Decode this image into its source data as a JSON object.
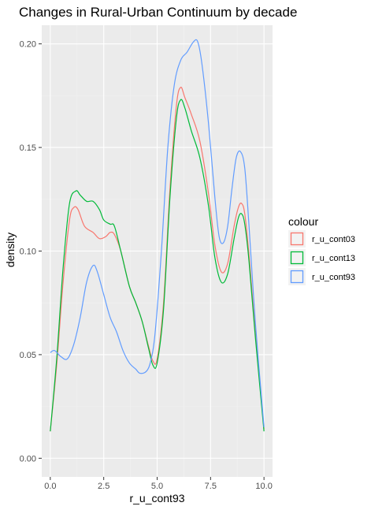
{
  "chart_data": {
    "type": "line",
    "title": "Changes in Rural-Urban Continuum by decade",
    "xlabel": "r_u_cont93",
    "ylabel": "density",
    "xlim": [
      -0.4,
      10.4
    ],
    "ylim": [
      -0.009,
      0.209
    ],
    "x_ticks": [
      0,
      2.5,
      5,
      7.5,
      10
    ],
    "x_tick_labels": [
      "0.0",
      "2.5",
      "5.0",
      "7.5",
      "10.0"
    ],
    "y_ticks": [
      0,
      0.05,
      0.1,
      0.15,
      0.2
    ],
    "y_tick_labels": [
      "0.00",
      "0.05",
      "0.10",
      "0.15",
      "0.20"
    ],
    "grid": true,
    "legend_title": "colour",
    "legend_position": "right",
    "panel_background": "#ebebeb",
    "series": [
      {
        "name": "r_u_cont03",
        "color": "#F8766D",
        "x": [
          0,
          0.3,
          0.6,
          0.9,
          1.1,
          1.3,
          1.6,
          2.0,
          2.3,
          2.6,
          2.8,
          3.0,
          3.3,
          3.7,
          4.0,
          4.3,
          4.6,
          4.8,
          5.0,
          5.3,
          5.6,
          5.9,
          6.1,
          6.3,
          6.6,
          7.0,
          7.4,
          7.7,
          8.0,
          8.3,
          8.6,
          8.8,
          8.95,
          9.1,
          9.3,
          9.6,
          10.0
        ],
        "y": [
          0.013,
          0.045,
          0.085,
          0.115,
          0.121,
          0.12,
          0.112,
          0.109,
          0.106,
          0.107,
          0.109,
          0.108,
          0.1,
          0.083,
          0.075,
          0.066,
          0.054,
          0.047,
          0.048,
          0.075,
          0.13,
          0.17,
          0.179,
          0.174,
          0.166,
          0.153,
          0.128,
          0.103,
          0.09,
          0.094,
          0.112,
          0.121,
          0.123,
          0.118,
          0.098,
          0.06,
          0.014
        ]
      },
      {
        "name": "r_u_cont13",
        "color": "#00BA38",
        "x": [
          0,
          0.3,
          0.6,
          0.9,
          1.2,
          1.4,
          1.7,
          2.0,
          2.3,
          2.5,
          2.8,
          3.0,
          3.3,
          3.7,
          4.0,
          4.3,
          4.6,
          4.8,
          5.0,
          5.3,
          5.6,
          5.9,
          6.1,
          6.3,
          6.6,
          7.0,
          7.4,
          7.7,
          8.0,
          8.3,
          8.6,
          8.8,
          8.95,
          9.1,
          9.3,
          9.6,
          10.0
        ],
        "y": [
          0.013,
          0.048,
          0.092,
          0.123,
          0.129,
          0.127,
          0.124,
          0.124,
          0.12,
          0.115,
          0.113,
          0.112,
          0.1,
          0.083,
          0.075,
          0.066,
          0.053,
          0.045,
          0.046,
          0.072,
          0.126,
          0.164,
          0.173,
          0.169,
          0.158,
          0.145,
          0.122,
          0.097,
          0.085,
          0.089,
          0.106,
          0.116,
          0.118,
          0.113,
          0.095,
          0.058,
          0.013
        ]
      },
      {
        "name": "r_u_cont93",
        "color": "#619CFF",
        "x": [
          0,
          0.2,
          0.5,
          0.8,
          1.1,
          1.4,
          1.7,
          2.0,
          2.2,
          2.5,
          2.8,
          3.1,
          3.4,
          3.7,
          4.0,
          4.2,
          4.5,
          4.7,
          4.9,
          5.2,
          5.5,
          5.8,
          6.1,
          6.4,
          6.7,
          6.9,
          7.1,
          7.4,
          7.7,
          7.9,
          8.1,
          8.3,
          8.5,
          8.7,
          8.9,
          9.1,
          9.3,
          9.6,
          10.0
        ],
        "y": [
          0.051,
          0.052,
          0.049,
          0.048,
          0.055,
          0.068,
          0.085,
          0.093,
          0.09,
          0.079,
          0.068,
          0.061,
          0.052,
          0.046,
          0.043,
          0.041,
          0.042,
          0.047,
          0.06,
          0.1,
          0.15,
          0.18,
          0.192,
          0.196,
          0.201,
          0.201,
          0.19,
          0.162,
          0.126,
          0.107,
          0.104,
          0.112,
          0.13,
          0.145,
          0.148,
          0.14,
          0.112,
          0.065,
          0.015
        ]
      }
    ]
  }
}
